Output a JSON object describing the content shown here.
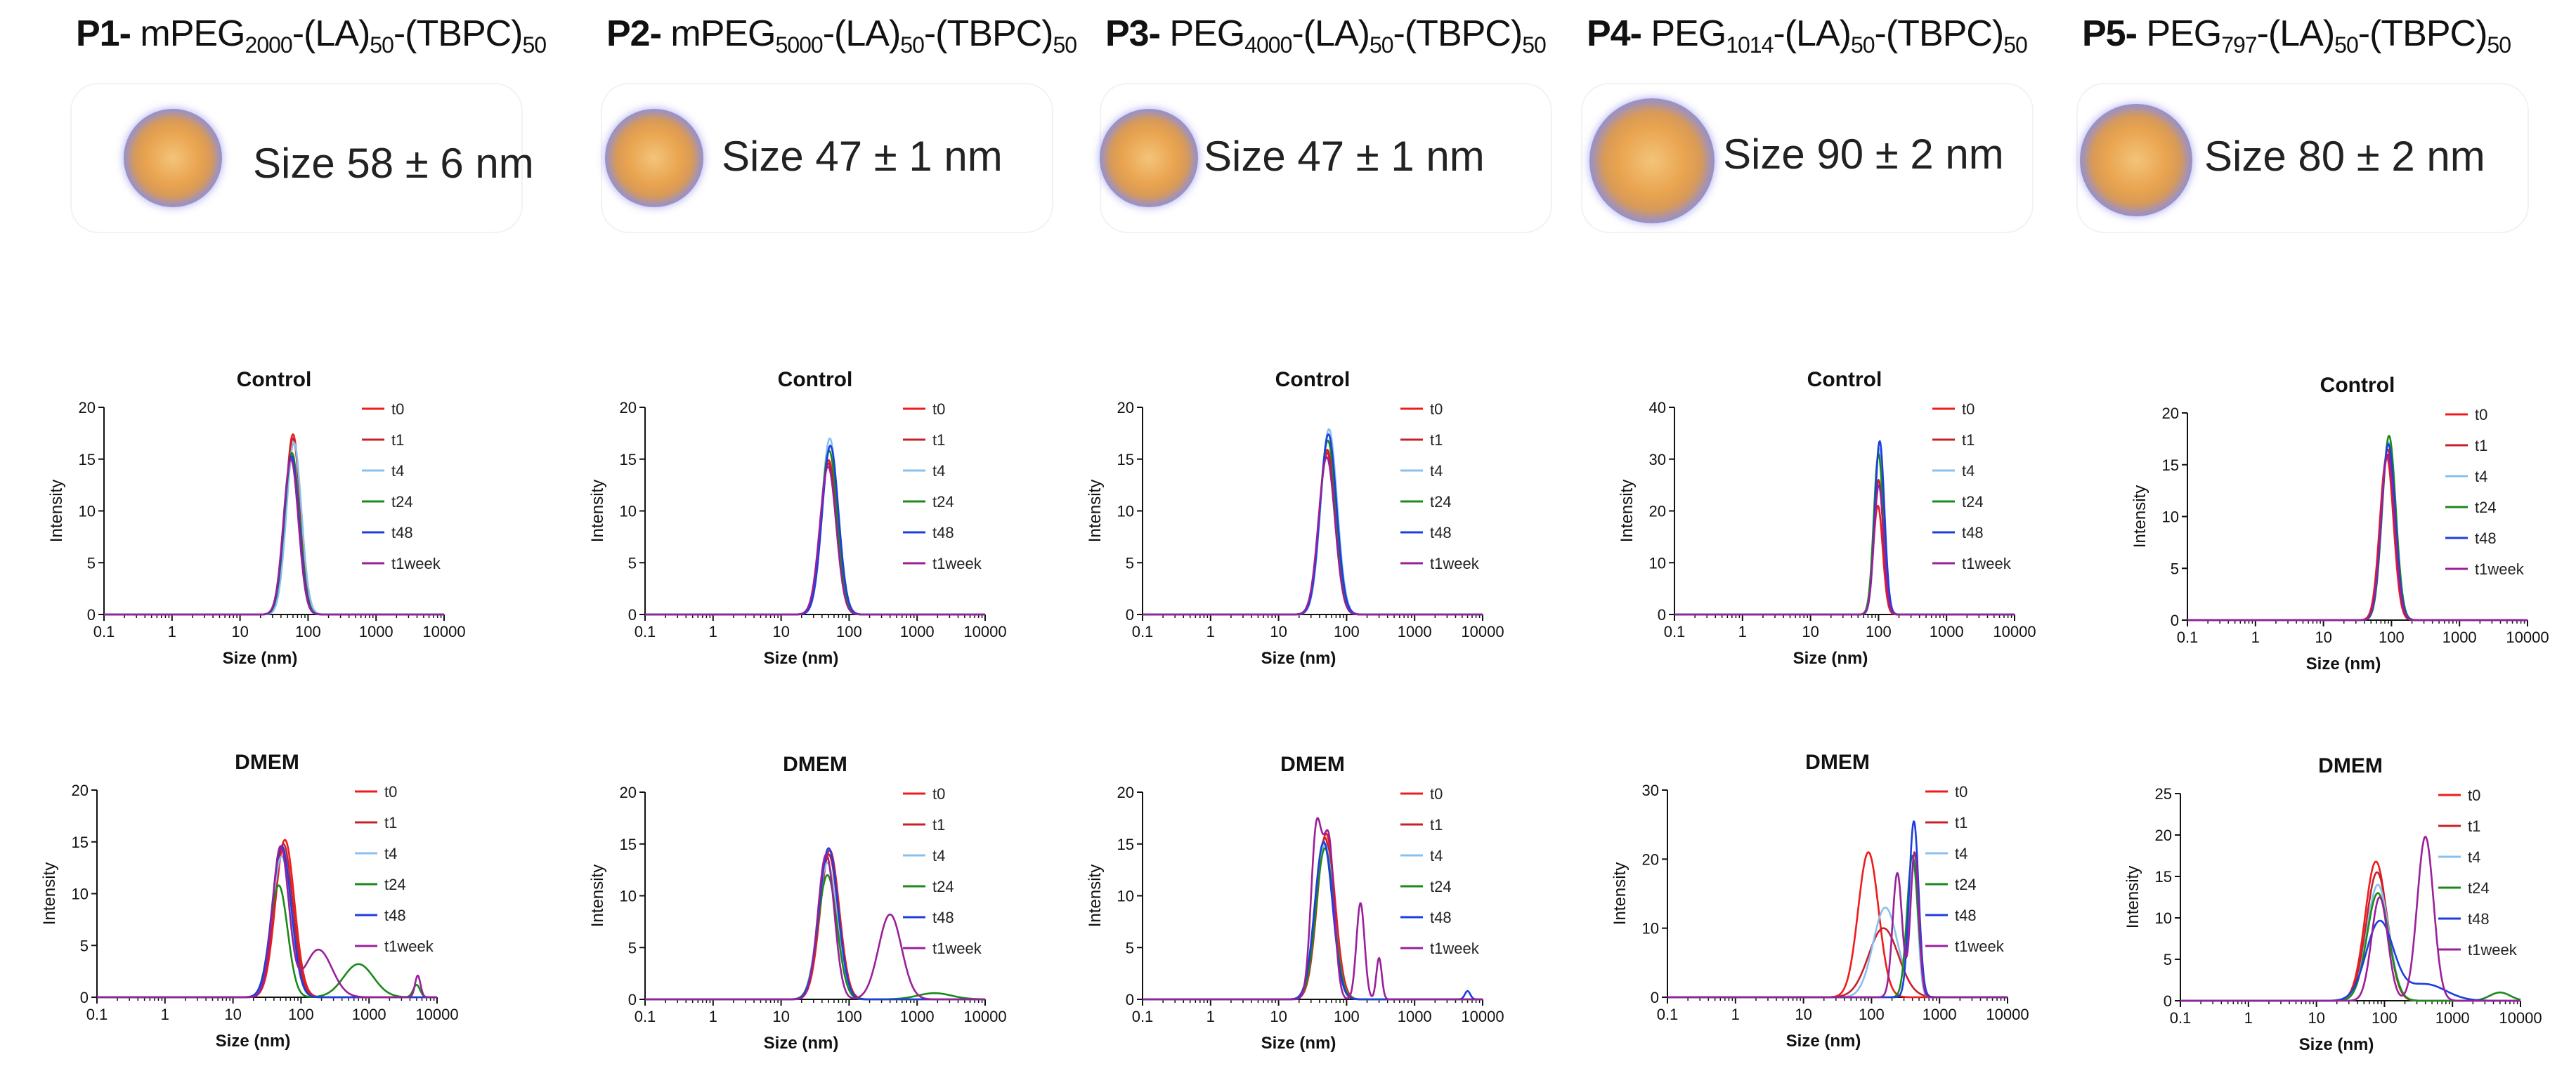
{
  "panels": [
    {
      "label": "P1-",
      "pre": "mPEG",
      "sub": "2000",
      "post": "-(LA)",
      "sub2": "50",
      "post2": "-(TBPC)",
      "sub3": "50",
      "size": "Size 58 ± 6 nm"
    },
    {
      "label": "P2-",
      "pre": "mPEG",
      "sub": "5000",
      "post": "-(LA)",
      "sub2": "50",
      "post2": "-(TBPC)",
      "sub3": "50",
      "size": "Size 47 ± 1 nm"
    },
    {
      "label": "P3-",
      "pre": "PEG",
      "sub": "4000",
      "post": "-(LA)",
      "sub2": "50",
      "post2": "-(TBPC)",
      "sub3": "50",
      "size": "Size 47 ± 1 nm"
    },
    {
      "label": "P4-",
      "pre": "PEG",
      "sub": "1014",
      "post": "-(LA)",
      "sub2": "50",
      "post2": "-(TBPC)",
      "sub3": "50",
      "size": "Size 90 ± 2 nm"
    },
    {
      "label": "P5-",
      "pre": "PEG",
      "sub": "797",
      "post": "-(LA)",
      "sub2": "50",
      "post2": "-(TBPC)",
      "sub3": "50",
      "size": "Size 80 ± 2 nm"
    }
  ],
  "series_colors": {
    "t0": "#ee1c1c",
    "t1": "#c8202a",
    "t4": "#88c0ee",
    "t24": "#1a8a1a",
    "t48": "#1c3ee0",
    "t1week": "#9a209a"
  },
  "chart_data": [
    {
      "type": "line",
      "panel": "P1",
      "title": "Control",
      "xlabel": "Size (nm)",
      "ylabel": "Intensity",
      "xscale": "log",
      "xlim": [
        0.1,
        10000
      ],
      "xticks": [
        "0.1",
        "1",
        "10",
        "100",
        "1000",
        "10000"
      ],
      "ylim": [
        0,
        20
      ],
      "yticks": [
        "0",
        "5",
        "10",
        "15",
        "20"
      ],
      "legend": "top-right",
      "series": [
        {
          "name": "t0",
          "peaks": [
            [
              60,
              17.4,
              0.11
            ]
          ]
        },
        {
          "name": "t1",
          "peaks": [
            [
              60,
              17.0,
              0.11
            ]
          ]
        },
        {
          "name": "t4",
          "peaks": [
            [
              62,
              16.6,
              0.11
            ]
          ]
        },
        {
          "name": "t24",
          "peaks": [
            [
              58,
              15.6,
              0.11
            ]
          ]
        },
        {
          "name": "t48",
          "peaks": [
            [
              57,
              15.3,
              0.11
            ]
          ]
        },
        {
          "name": "t1week",
          "peaks": [
            [
              56,
              15.0,
              0.11
            ]
          ]
        }
      ]
    },
    {
      "type": "line",
      "panel": "P2",
      "title": "Control",
      "xlabel": "Size (nm)",
      "ylabel": "Intensity",
      "xscale": "log",
      "xlim": [
        0.1,
        10000
      ],
      "xticks": [
        "0.1",
        "1",
        "10",
        "100",
        "1000",
        "10000"
      ],
      "ylim": [
        0,
        20
      ],
      "yticks": [
        "0",
        "5",
        "10",
        "15",
        "20"
      ],
      "legend": "top-right",
      "series": [
        {
          "name": "t0",
          "peaks": [
            [
              50,
              14.9,
              0.12
            ]
          ]
        },
        {
          "name": "t1",
          "peaks": [
            [
              50,
              14.6,
              0.12
            ]
          ]
        },
        {
          "name": "t4",
          "peaks": [
            [
              52,
              17.0,
              0.12
            ]
          ]
        },
        {
          "name": "t24",
          "peaks": [
            [
              51,
              15.8,
              0.12
            ]
          ]
        },
        {
          "name": "t48",
          "peaks": [
            [
              53,
              16.3,
              0.12
            ]
          ]
        },
        {
          "name": "t1week",
          "peaks": [
            [
              49,
              14.3,
              0.12
            ]
          ]
        }
      ]
    },
    {
      "type": "line",
      "panel": "P3",
      "title": "Control",
      "xlabel": "Size (nm)",
      "ylabel": "Intensity",
      "xscale": "log",
      "xlim": [
        0.1,
        10000
      ],
      "xticks": [
        "0.1",
        "1",
        "10",
        "100",
        "1000",
        "10000"
      ],
      "ylim": [
        0,
        20
      ],
      "yticks": [
        "0",
        "5",
        "10",
        "15",
        "20"
      ],
      "legend": "top-right",
      "series": [
        {
          "name": "t0",
          "peaks": [
            [
              52,
              15.6,
              0.12
            ]
          ]
        },
        {
          "name": "t1",
          "peaks": [
            [
              52,
              15.9,
              0.12
            ]
          ]
        },
        {
          "name": "t4",
          "peaks": [
            [
              55,
              17.9,
              0.12
            ]
          ]
        },
        {
          "name": "t24",
          "peaks": [
            [
              53,
              16.8,
              0.12
            ]
          ]
        },
        {
          "name": "t48",
          "peaks": [
            [
              54,
              17.4,
              0.12
            ]
          ]
        },
        {
          "name": "t1week",
          "peaks": [
            [
              51,
              15.2,
              0.12
            ]
          ]
        }
      ]
    },
    {
      "type": "line",
      "panel": "P4",
      "title": "Control",
      "xlabel": "Size (nm)",
      "ylabel": "Intensity",
      "xscale": "log",
      "xlim": [
        0.1,
        10000
      ],
      "xticks": [
        "0.1",
        "1",
        "10",
        "100",
        "1000",
        "10000"
      ],
      "ylim": [
        0,
        40
      ],
      "yticks": [
        "0",
        "10",
        "20",
        "30",
        "40"
      ],
      "legend": "top-right",
      "series": [
        {
          "name": "t0",
          "peaks": [
            [
              98,
              21.0,
              0.07
            ]
          ]
        },
        {
          "name": "t1",
          "peaks": [
            [
              100,
              26.0,
              0.07
            ]
          ]
        },
        {
          "name": "t4",
          "peaks": [
            [
              102,
              32.0,
              0.07
            ]
          ]
        },
        {
          "name": "t24",
          "peaks": [
            [
              100,
              31.0,
              0.07
            ]
          ]
        },
        {
          "name": "t48",
          "peaks": [
            [
              104,
              33.5,
              0.07
            ]
          ]
        },
        {
          "name": "t1week",
          "peaks": [
            [
              101,
              25.0,
              0.07
            ]
          ]
        }
      ]
    },
    {
      "type": "line",
      "panel": "P5",
      "title": "Control",
      "xlabel": "Size (nm)",
      "ylabel": "Intensity",
      "xscale": "log",
      "xlim": [
        0.1,
        10000
      ],
      "xticks": [
        "0.1",
        "1",
        "10",
        "100",
        "1000",
        "10000"
      ],
      "ylim": [
        0,
        20
      ],
      "yticks": [
        "0",
        "5",
        "10",
        "15",
        "20"
      ],
      "legend": "top-right",
      "series": [
        {
          "name": "t0",
          "peaks": [
            [
              85,
              15.8,
              0.1
            ]
          ]
        },
        {
          "name": "t1",
          "peaks": [
            [
              88,
              16.5,
              0.1
            ]
          ]
        },
        {
          "name": "t4",
          "peaks": [
            [
              90,
              17.2,
              0.1
            ]
          ]
        },
        {
          "name": "t24",
          "peaks": [
            [
              92,
              17.8,
              0.1
            ]
          ]
        },
        {
          "name": "t48",
          "peaks": [
            [
              90,
              17.0,
              0.1
            ]
          ]
        },
        {
          "name": "t1week",
          "peaks": [
            [
              88,
              16.0,
              0.1
            ]
          ]
        }
      ]
    },
    {
      "type": "line",
      "panel": "P1",
      "title": "DMEM",
      "xlabel": "Size (nm)",
      "ylabel": "Intensity",
      "xscale": "log",
      "xlim": [
        0.1,
        10000
      ],
      "xticks": [
        "0.1",
        "1",
        "10",
        "100",
        "1000",
        "10000"
      ],
      "ylim": [
        0,
        20
      ],
      "yticks": [
        "0",
        "5",
        "10",
        "15",
        "20"
      ],
      "legend": "top-right",
      "series": [
        {
          "name": "t0",
          "peaks": [
            [
              58,
              15.2,
              0.14
            ]
          ]
        },
        {
          "name": "t1",
          "peaks": [
            [
              55,
              14.8,
              0.14
            ]
          ]
        },
        {
          "name": "t4",
          "peaks": [
            [
              52,
              13.6,
              0.14
            ]
          ]
        },
        {
          "name": "t24",
          "peaks": [
            [
              47,
              10.8,
              0.13
            ],
            [
              700,
              3.2,
              0.22
            ],
            [
              5000,
              1.2,
              0.05
            ]
          ]
        },
        {
          "name": "t48",
          "peaks": [
            [
              52,
              14.6,
              0.14
            ]
          ]
        },
        {
          "name": "t1week",
          "peaks": [
            [
              50,
              14.5,
              0.12
            ],
            [
              180,
              4.6,
              0.2
            ],
            [
              5200,
              2.1,
              0.04
            ]
          ]
        }
      ]
    },
    {
      "type": "line",
      "panel": "P2",
      "title": "DMEM",
      "xlabel": "Size (nm)",
      "ylabel": "Intensity",
      "xscale": "log",
      "xlim": [
        0.1,
        10000
      ],
      "xticks": [
        "0.1",
        "1",
        "10",
        "100",
        "1000",
        "10000"
      ],
      "ylim": [
        0,
        20
      ],
      "yticks": [
        "0",
        "5",
        "10",
        "15",
        "20"
      ],
      "legend": "top-right",
      "series": [
        {
          "name": "t0",
          "peaks": [
            [
              52,
              14.4,
              0.14
            ]
          ]
        },
        {
          "name": "t1",
          "peaks": [
            [
              50,
              14.0,
              0.14
            ]
          ]
        },
        {
          "name": "t4",
          "peaks": [
            [
              48,
              13.2,
              0.14
            ]
          ]
        },
        {
          "name": "t24",
          "peaks": [
            [
              48,
              12.0,
              0.14
            ],
            [
              1800,
              0.6,
              0.25
            ]
          ]
        },
        {
          "name": "t48",
          "peaks": [
            [
              50,
              14.6,
              0.14
            ]
          ]
        },
        {
          "name": "t1week",
          "peaks": [
            [
              46,
              14.0,
              0.12
            ],
            [
              400,
              8.2,
              0.17
            ]
          ]
        }
      ]
    },
    {
      "type": "line",
      "panel": "P3",
      "title": "DMEM",
      "xlabel": "Size (nm)",
      "ylabel": "Intensity",
      "xscale": "log",
      "xlim": [
        0.1,
        10000
      ],
      "xticks": [
        "0.1",
        "1",
        "10",
        "100",
        "1000",
        "10000"
      ],
      "ylim": [
        0,
        20
      ],
      "yticks": [
        "0",
        "5",
        "10",
        "15",
        "20"
      ],
      "legend": "top-right",
      "series": [
        {
          "name": "t0",
          "peaks": [
            [
              50,
              16.0,
              0.13
            ]
          ]
        },
        {
          "name": "t1",
          "peaks": [
            [
              48,
              15.6,
              0.13
            ]
          ]
        },
        {
          "name": "t4",
          "peaks": [
            [
              48,
              15.0,
              0.13
            ]
          ]
        },
        {
          "name": "t24",
          "peaks": [
            [
              48,
              14.6,
              0.13
            ]
          ]
        },
        {
          "name": "t48",
          "peaks": [
            [
              46,
              15.2,
              0.13
            ],
            [
              6000,
              0.8,
              0.04
            ]
          ]
        },
        {
          "name": "t1week",
          "peaks": [
            [
              36,
              16.2,
              0.08
            ],
            [
              55,
              14.8,
              0.08
            ],
            [
              160,
              9.3,
              0.06
            ],
            [
              300,
              4.0,
              0.04
            ]
          ]
        }
      ]
    },
    {
      "type": "line",
      "panel": "P4",
      "title": "DMEM",
      "xlabel": "Size (nm)",
      "ylabel": "Intensity",
      "xscale": "log",
      "xlim": [
        0.1,
        10000
      ],
      "xticks": [
        "0.1",
        "1",
        "10",
        "100",
        "1000",
        "10000"
      ],
      "ylim": [
        0,
        30
      ],
      "yticks": [
        "0",
        "10",
        "20",
        "30"
      ],
      "legend": "top-right",
      "series": [
        {
          "name": "t0",
          "peaks": [
            [
              90,
              21.0,
              0.15
            ]
          ]
        },
        {
          "name": "t1",
          "peaks": [
            [
              150,
              10.0,
              0.22
            ]
          ]
        },
        {
          "name": "t4",
          "peaks": [
            [
              160,
              13.0,
              0.18
            ],
            [
              420,
              18.0,
              0.06
            ]
          ]
        },
        {
          "name": "t24",
          "peaks": [
            [
              400,
              20.5,
              0.08
            ]
          ]
        },
        {
          "name": "t48",
          "peaks": [
            [
              420,
              25.5,
              0.07
            ]
          ]
        },
        {
          "name": "t1week",
          "peaks": [
            [
              240,
              18.0,
              0.07
            ],
            [
              430,
              21.0,
              0.06
            ]
          ]
        }
      ]
    },
    {
      "type": "line",
      "panel": "P5",
      "title": "DMEM",
      "xlabel": "Size (nm)",
      "ylabel": "Intensity",
      "xscale": "log",
      "xlim": [
        0.1,
        10000
      ],
      "xticks": [
        "0.1",
        "1",
        "10",
        "100",
        "1000",
        "10000"
      ],
      "ylim": [
        0,
        25
      ],
      "yticks": [
        "0",
        "5",
        "10",
        "15",
        "20",
        "25"
      ],
      "legend": "top-right",
      "series": [
        {
          "name": "t0",
          "peaks": [
            [
              75,
              16.8,
              0.16
            ]
          ]
        },
        {
          "name": "t1",
          "peaks": [
            [
              78,
              15.5,
              0.16
            ]
          ]
        },
        {
          "name": "t4",
          "peaks": [
            [
              80,
              14.0,
              0.16
            ]
          ]
        },
        {
          "name": "t24",
          "peaks": [
            [
              80,
              13.0,
              0.16
            ],
            [
              5000,
              1.0,
              0.15
            ]
          ]
        },
        {
          "name": "t48",
          "peaks": [
            [
              85,
              9.5,
              0.2
            ],
            [
              400,
              2.0,
              0.3
            ]
          ]
        },
        {
          "name": "t1week",
          "peaks": [
            [
              85,
              12.5,
              0.12
            ],
            [
              400,
              19.8,
              0.12
            ]
          ]
        }
      ]
    }
  ]
}
